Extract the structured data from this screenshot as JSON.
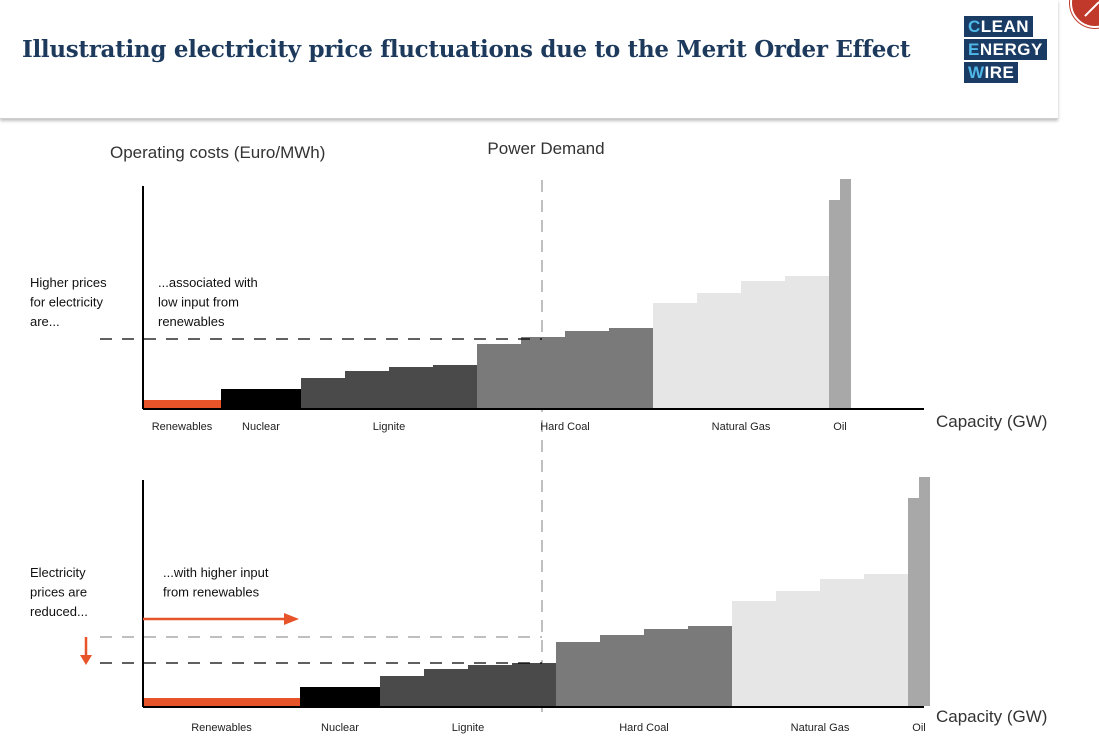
{
  "header": {
    "title": "Illustrating electricity price fluctuations due to the Merit Order Effect",
    "logo_lines": [
      "CLEAN",
      "ENERGY",
      "WIRE"
    ]
  },
  "labels": {
    "y_axis": "Operating costs (Euro/MWh)",
    "demand": "Power Demand",
    "x_axis": "Capacity (GW)"
  },
  "colors": {
    "renewables": "#e8542a",
    "nuclear": "#000000",
    "lignite": "#4a4a4a",
    "hard_coal": "#7a7a7a",
    "natural_gas": "#e6e6e6",
    "oil": "#a8a8a8",
    "brand": "#1a3b63"
  },
  "chart_data": [
    {
      "type": "bar",
      "title": "",
      "xlabel": "Capacity (GW)",
      "ylabel": "Operating costs (Euro/MWh)",
      "annotation_left": [
        "Higher prices",
        "for electricity",
        "are..."
      ],
      "annotation_inner": [
        "...associated with",
        "low input from",
        "renewables"
      ],
      "categories": [
        "Renewables",
        "Nuclear",
        "Lignite",
        "Hard Coal",
        "Natural Gas",
        "Oil"
      ],
      "series": [
        {
          "category": "Renewables",
          "color_key": "renewables",
          "steps": [
            {
              "width": 78,
              "height": 8
            }
          ]
        },
        {
          "category": "Nuclear",
          "color_key": "nuclear",
          "steps": [
            {
              "width": 80,
              "height": 19
            }
          ]
        },
        {
          "category": "Lignite",
          "color_key": "lignite",
          "steps": [
            {
              "width": 44,
              "height": 30
            },
            {
              "width": 44,
              "height": 37
            },
            {
              "width": 44,
              "height": 41
            },
            {
              "width": 44,
              "height": 43
            }
          ]
        },
        {
          "category": "Hard Coal",
          "color_key": "hard_coal",
          "steps": [
            {
              "width": 44,
              "height": 64
            },
            {
              "width": 44,
              "height": 71
            },
            {
              "width": 44,
              "height": 77
            },
            {
              "width": 44,
              "height": 80
            }
          ]
        },
        {
          "category": "Natural Gas",
          "color_key": "natural_gas",
          "steps": [
            {
              "width": 44,
              "height": 105
            },
            {
              "width": 44,
              "height": 115
            },
            {
              "width": 44,
              "height": 127
            },
            {
              "width": 44,
              "height": 132
            }
          ]
        },
        {
          "category": "Oil",
          "color_key": "oil",
          "steps": [
            {
              "width": 11,
              "height": 208
            },
            {
              "width": 11,
              "height": 229
            }
          ]
        }
      ],
      "price_level": 69
    },
    {
      "type": "bar",
      "title": "",
      "xlabel": "Capacity (GW)",
      "ylabel": "",
      "annotation_left": [
        "Electricity",
        "prices are",
        "reduced..."
      ],
      "annotation_inner": [
        "...with higher input",
        "from renewables"
      ],
      "categories": [
        "Renewables",
        "Nuclear",
        "Lignite",
        "Hard Coal",
        "Natural Gas",
        "Oil"
      ],
      "series": [
        {
          "category": "Renewables",
          "color_key": "renewables",
          "steps": [
            {
              "width": 157,
              "height": 8
            }
          ]
        },
        {
          "category": "Nuclear",
          "color_key": "nuclear",
          "steps": [
            {
              "width": 80,
              "height": 19
            }
          ]
        },
        {
          "category": "Lignite",
          "color_key": "lignite",
          "steps": [
            {
              "width": 44,
              "height": 30
            },
            {
              "width": 44,
              "height": 37
            },
            {
              "width": 44,
              "height": 41
            },
            {
              "width": 44,
              "height": 43
            }
          ]
        },
        {
          "category": "Hard Coal",
          "color_key": "hard_coal",
          "steps": [
            {
              "width": 44,
              "height": 64
            },
            {
              "width": 44,
              "height": 71
            },
            {
              "width": 44,
              "height": 77
            },
            {
              "width": 44,
              "height": 80
            }
          ]
        },
        {
          "category": "Natural Gas",
          "color_key": "natural_gas",
          "steps": [
            {
              "width": 44,
              "height": 105
            },
            {
              "width": 44,
              "height": 115
            },
            {
              "width": 44,
              "height": 127
            },
            {
              "width": 44,
              "height": 132
            }
          ]
        },
        {
          "category": "Oil",
          "color_key": "oil",
          "steps": [
            {
              "width": 11,
              "height": 208
            },
            {
              "width": 11,
              "height": 229
            }
          ]
        }
      ],
      "price_level": 43,
      "previous_price_level": 69
    }
  ]
}
